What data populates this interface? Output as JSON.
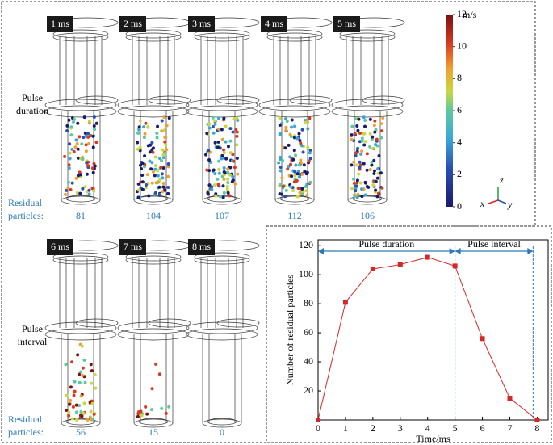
{
  "panels": [
    {
      "label": "1 ms",
      "count": 81
    },
    {
      "label": "2 ms",
      "count": 104
    },
    {
      "label": "3 ms",
      "count": 107
    },
    {
      "label": "4 ms",
      "count": 112
    },
    {
      "label": "5 ms",
      "count": 106
    },
    {
      "label": "6 ms",
      "count": 56
    },
    {
      "label": "7 ms",
      "count": 15
    },
    {
      "label": "8 ms",
      "count": 0
    }
  ],
  "rows": [
    {
      "label": [
        "Pulse",
        "duration"
      ],
      "count_label": [
        "Residual",
        "particles:"
      ]
    },
    {
      "label": [
        "Pulse",
        "interval"
      ],
      "count_label": [
        "Residual",
        "particles:"
      ]
    }
  ],
  "colorbar": {
    "unit": "m/s",
    "lim": [
      0,
      12
    ],
    "ticks": [
      0,
      2,
      4,
      6,
      8,
      10,
      12
    ]
  },
  "axes_triad": {
    "x": "x",
    "y": "y",
    "z": "z"
  },
  "chart_data": {
    "type": "line",
    "xlabel": "Time/ms",
    "ylabel": "Number of residual particles",
    "x": [
      0,
      1,
      2,
      3,
      4,
      5,
      6,
      7,
      8
    ],
    "values": [
      0,
      81,
      104,
      107,
      112,
      106,
      56,
      15,
      0
    ],
    "color": "#d62728",
    "xlim": [
      0,
      8.4
    ],
    "ylim": [
      0,
      124
    ],
    "xticks": [
      0,
      1,
      2,
      3,
      4,
      5,
      6,
      7,
      8
    ],
    "yticks": [
      20,
      40,
      60,
      80,
      100,
      120
    ],
    "annotations": [
      {
        "text": "Pulse duration",
        "from": 0,
        "to": 5
      },
      {
        "text": "Pulse interval",
        "from": 5,
        "to": 7.85
      }
    ],
    "annotation_color": "#2a7ab8"
  }
}
